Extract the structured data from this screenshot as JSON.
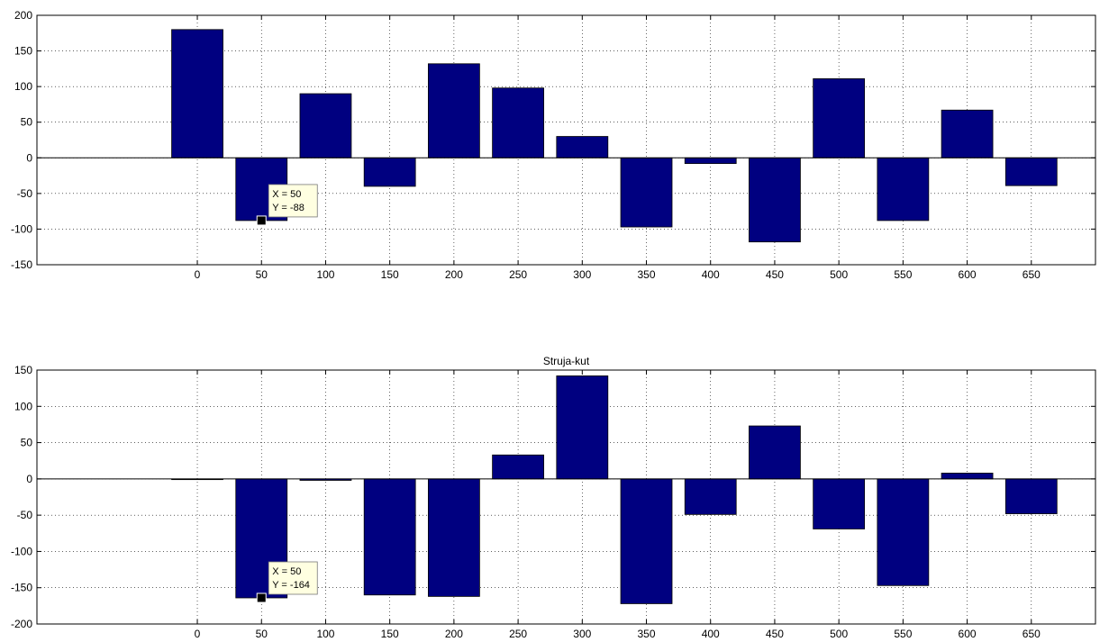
{
  "chart_data": [
    {
      "type": "bar",
      "title": "",
      "xlabel": "",
      "ylabel": "",
      "x": [
        0,
        50,
        100,
        150,
        200,
        250,
        300,
        350,
        400,
        450,
        500,
        550,
        600,
        650
      ],
      "values": [
        180,
        -88,
        90,
        -40,
        132,
        98,
        30,
        -97,
        -8,
        -118,
        111,
        -88,
        67,
        -39
      ],
      "xlim": [
        -125,
        700
      ],
      "ylim": [
        -150,
        200
      ],
      "xticks": [
        0,
        50,
        100,
        150,
        200,
        250,
        300,
        350,
        400,
        450,
        500,
        550,
        600,
        650
      ],
      "yticks": [
        -150,
        -100,
        -50,
        0,
        50,
        100,
        150,
        200
      ],
      "grid": true,
      "bar_color": "#000080",
      "datatip": {
        "x": 50,
        "y": -88,
        "lines": [
          "X = 50",
          "Y = -88"
        ]
      }
    },
    {
      "type": "bar",
      "title": "Struja-kut",
      "xlabel": "",
      "ylabel": "",
      "x": [
        0,
        50,
        100,
        150,
        200,
        250,
        300,
        350,
        400,
        450,
        500,
        550,
        600,
        650
      ],
      "values": [
        0,
        -164,
        -2,
        -160,
        -162,
        33,
        142,
        -172,
        -49,
        73,
        -69,
        -147,
        8,
        -48
      ],
      "xlim": [
        -125,
        700
      ],
      "ylim": [
        -200,
        150
      ],
      "xticks": [
        0,
        50,
        100,
        150,
        200,
        250,
        300,
        350,
        400,
        450,
        500,
        550,
        600,
        650
      ],
      "yticks": [
        -200,
        -150,
        -100,
        -50,
        0,
        50,
        100,
        150
      ],
      "grid": true,
      "bar_color": "#000080",
      "datatip": {
        "x": 50,
        "y": -164,
        "lines": [
          "X = 50",
          "Y = -164"
        ]
      }
    }
  ]
}
